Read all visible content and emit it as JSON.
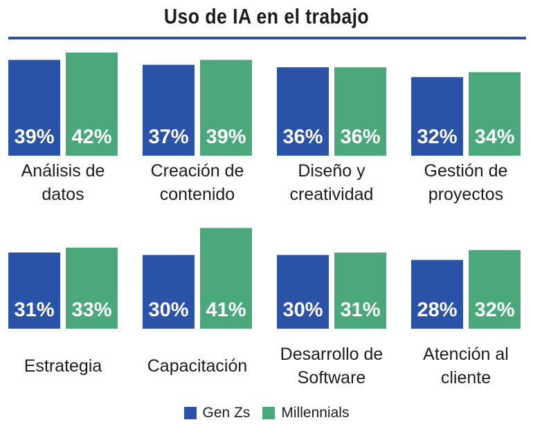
{
  "chart_data": {
    "type": "bar",
    "title": "Uso de IA en el trabajo",
    "ylim": [
      0,
      45
    ],
    "series": [
      {
        "name": "Gen Zs",
        "color": "#2a52a7"
      },
      {
        "name": "Millennials",
        "color": "#4aa87b"
      }
    ],
    "groups": [
      {
        "label_lines": [
          "Análisis de",
          "datos"
        ],
        "values": [
          39,
          42
        ],
        "value_labels": [
          "39%",
          "42%"
        ]
      },
      {
        "label_lines": [
          "Creación de",
          "contenido"
        ],
        "values": [
          37,
          39
        ],
        "value_labels": [
          "37%",
          "39%"
        ]
      },
      {
        "label_lines": [
          "Diseño y",
          "creatividad"
        ],
        "values": [
          36,
          36
        ],
        "value_labels": [
          "36%",
          "36%"
        ]
      },
      {
        "label_lines": [
          "Gestión de",
          "proyectos"
        ],
        "values": [
          32,
          34
        ],
        "value_labels": [
          "32%",
          "34%"
        ]
      },
      {
        "label_lines": [
          "Estrategia"
        ],
        "values": [
          31,
          33
        ],
        "value_labels": [
          "31%",
          "33%"
        ]
      },
      {
        "label_lines": [
          "Capacitación"
        ],
        "values": [
          30,
          41
        ],
        "value_labels": [
          "30%",
          "41%"
        ]
      },
      {
        "label_lines": [
          "Desarrollo de",
          "Software"
        ],
        "values": [
          30,
          31
        ],
        "value_labels": [
          "30%",
          "31%"
        ]
      },
      {
        "label_lines": [
          "Atención al",
          "cliente"
        ],
        "values": [
          28,
          32
        ],
        "value_labels": [
          "28%",
          "32%"
        ]
      }
    ],
    "legend": [
      "Gen Zs",
      "Millennials"
    ]
  }
}
